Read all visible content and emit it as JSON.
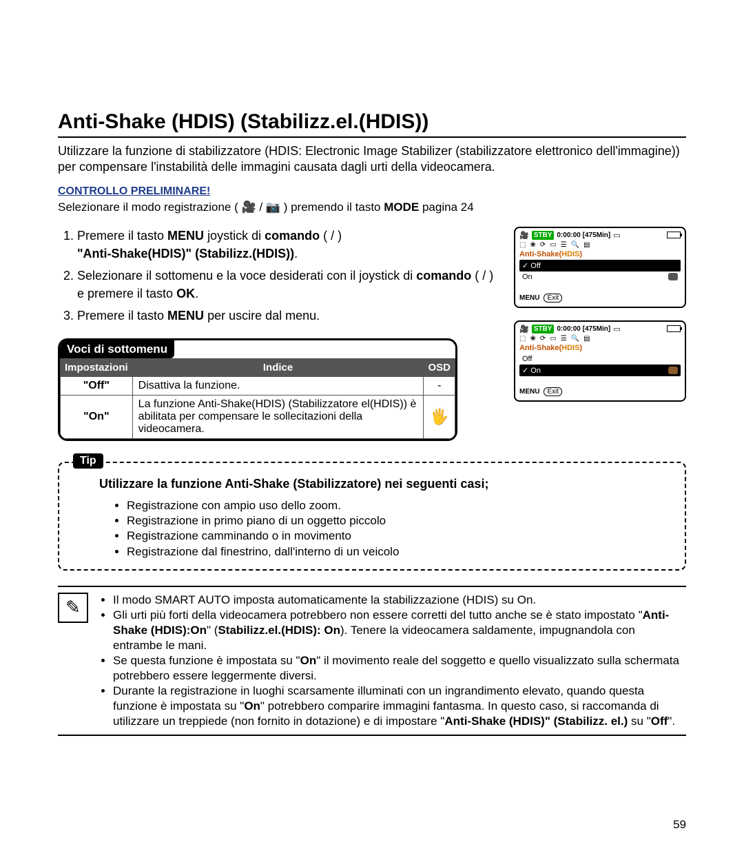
{
  "title": "Anti-Shake (HDIS) (Stabilizz.el.(HDIS))",
  "intro": "Utilizzare la funzione di stabilizzatore (HDIS: Electronic Image Stabilizer (stabilizzatore elettronico dell'immagine)) per compensare l'instabilità delle immagini causata dagli urti della videocamera.",
  "ctrl": "CONTROLLO PRELIMINARE!",
  "mode_pre": "Selezionare il modo registrazione ( ",
  "mode_mid": " ) premendo il tasto ",
  "mode_bold": "MODE",
  "mode_post": "  pagina 24",
  "steps": {
    "s1a": "Premere il tasto ",
    "s1_menu": "MENU",
    "s1b": "  joystick di",
    "s1_cmd": "comando",
    "s1c": " ( / ) ",
    "s1_quote": "\"Anti-Shake(HDIS)\" (Stabilizz.(HDIS))",
    "s2a": "Selezionare il sottomenu e la voce desiderati con il joystick di ",
    "s2_cmd": "comando",
    "s2b": " ( / ) e premere il tasto ",
    "s2_ok": "OK",
    "s3a": "Premere il tasto ",
    "s3_menu": "MENU",
    "s3b": " per uscire dal menu."
  },
  "voci_title": "Voci di sottomenu",
  "table": {
    "h1": "Impostazioni",
    "h2": "Indice",
    "h3": "OSD",
    "r1c1": "\"Off\"",
    "r1c2": "Disattiva la funzione.",
    "r1c3": "-",
    "r2c1": "\"On\"",
    "r2c2": "La funzione Anti-Shake(HDIS) (Stabilizzatore el(HDIS)) è abilitata per compensare le sollecitazioni della videocamera.",
    "r2c3": "🖐"
  },
  "lcd": {
    "stby": "STBY",
    "time": "0:00:00 [475Min]",
    "label": "Anti-Shake(HDIS)",
    "off": "Off",
    "on": "On",
    "menu": "MENU",
    "exit": "Exit",
    "check": "✓"
  },
  "tip_badge": "Tip",
  "tip_heading": "Utilizzare la funzione Anti-Shake (Stabilizzatore) nei seguenti casi;",
  "tips": {
    "t1": "Registrazione con ampio uso dello zoom.",
    "t2": "Registrazione in primo piano di un oggetto piccolo",
    "t3": "Registrazione camminando o in movimento",
    "t4": "Registrazione dal finestrino, dall'interno di un veicolo"
  },
  "notes": {
    "n1": "Il modo SMART AUTO imposta automaticamente la stabilizzazione (HDIS) su On.",
    "n2a": "Gli urti più forti della videocamera potrebbero non essere corretti del tutto anche se è stato impostato \"",
    "n2b": "Anti-Shake (HDIS):On",
    "n2c": "\" (",
    "n2d": "Stabilizz.el.(HDIS): On",
    "n2e": "). Tenere la videocamera saldamente, impugnandola con entrambe le mani.",
    "n3a": "Se questa funzione è impostata su \"",
    "n3b": "On",
    "n3c": "\" il movimento reale del soggetto e quello visualizzato sulla schermata potrebbero essere leggermente diversi.",
    "n4a": "Durante la registrazione in luoghi scarsamente illuminati con un ingrandimento elevato, quando questa funzione è impostata su \"",
    "n4b": "On",
    "n4c": "\" potrebbero comparire immagini fantasma. In questo caso, si raccomanda di utilizzare un treppiede (non fornito in dotazione) e di impostare \"",
    "n4d": "Anti-Shake (HDIS)\" (Stabilizz. el.)",
    "n4e": " su \"",
    "n4f": "Off",
    "n4g": "\"."
  },
  "page": "59"
}
